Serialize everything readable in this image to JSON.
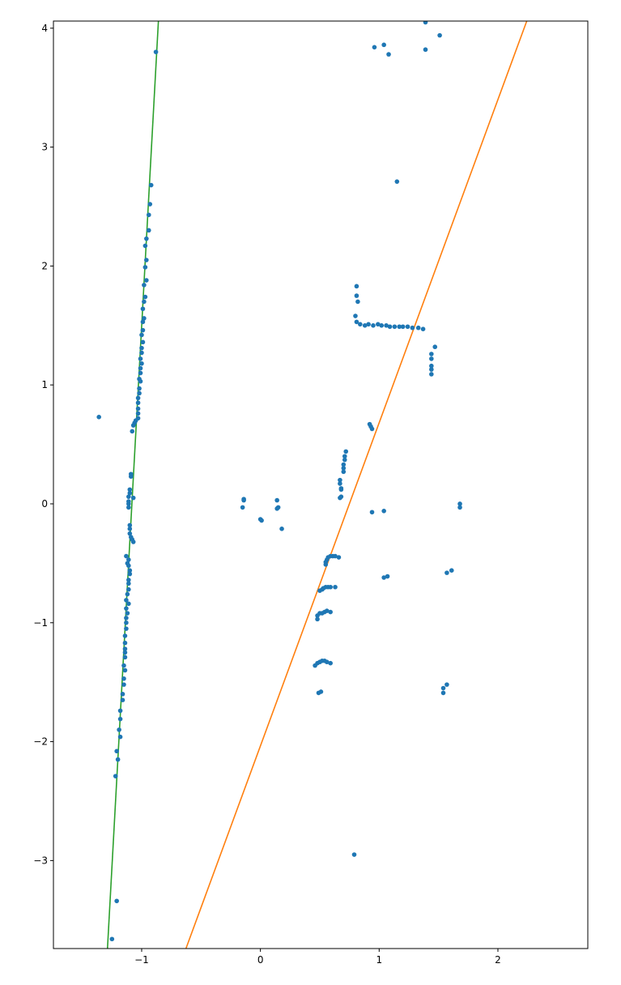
{
  "chart_data": {
    "type": "scatter",
    "xlim": [
      -1.743,
      2.757
    ],
    "ylim": [
      -3.74,
      4.06
    ],
    "xticks": [
      {
        "value": -1,
        "label": "−1"
      },
      0,
      1,
      2
    ],
    "yticks": [
      {
        "value": -3,
        "label": "−3"
      },
      {
        "value": -2,
        "label": "−2"
      },
      {
        "value": -1,
        "label": "−1"
      },
      0,
      1,
      2,
      3,
      4
    ],
    "grid": false,
    "series": [
      {
        "type": "line",
        "color": "#2ca02c",
        "x": [
          -1.288,
          -0.859
        ],
        "y": [
          -3.74,
          4.06
        ]
      },
      {
        "type": "line",
        "color": "#ff7f0e",
        "x": [
          -0.627,
          2.243
        ],
        "y": [
          -3.74,
          4.06
        ]
      },
      {
        "type": "scatter",
        "color": "#1f77b4",
        "x": [
          -0.88,
          -0.92,
          -0.93,
          -0.94,
          -0.94,
          -0.96,
          -0.97,
          -0.96,
          -0.97,
          -0.96,
          -0.98,
          -0.97,
          -0.98,
          -0.99,
          -0.98,
          -0.99,
          -0.99,
          -1.0,
          -0.99,
          -1.0,
          -1.0,
          -1.01,
          -1.0,
          -1.01,
          -1.01,
          -1.02,
          -1.01,
          -1.02,
          -1.02,
          -1.03,
          -1.03,
          -1.03,
          -1.03,
          -1.03,
          -1.05,
          -1.06,
          -1.07,
          -1.08,
          -1.36,
          -1.09,
          -1.09,
          -1.1,
          -1.1,
          -1.11,
          -1.07,
          -1.11,
          -1.11,
          -1.11,
          -1.1,
          -1.1,
          -1.1,
          -1.09,
          -1.08,
          -1.07,
          -1.13,
          -1.11,
          -1.12,
          -1.11,
          -1.1,
          -1.1,
          -1.11,
          -1.11,
          -1.11,
          -1.12,
          -1.13,
          -1.11,
          -1.13,
          -1.12,
          -1.13,
          -1.13,
          -1.13,
          -1.14,
          -1.14,
          -1.14,
          -1.14,
          -1.14,
          -1.15,
          -1.14,
          -1.15,
          -1.15,
          -1.16,
          -1.16,
          -1.18,
          -1.18,
          -1.19,
          -1.18,
          -1.21,
          -1.2,
          -1.22,
          -1.21,
          -1.25,
          0.96,
          1.04,
          1.08,
          1.39,
          1.39,
          1.51,
          1.15,
          0.81,
          0.81,
          0.82,
          0.8,
          0.81,
          0.84,
          0.88,
          0.91,
          0.95,
          0.99,
          1.02,
          1.06,
          1.09,
          1.13,
          1.17,
          1.2,
          1.24,
          1.28,
          1.33,
          1.37,
          1.47,
          1.44,
          1.44,
          1.44,
          1.44,
          1.44,
          0.92,
          0.93,
          0.94,
          0.72,
          0.71,
          0.71,
          0.7,
          0.7,
          0.7,
          0.67,
          0.67,
          0.68,
          0.68,
          0.68,
          0.67,
          -0.14,
          -0.14,
          -0.15,
          0.14,
          0.15,
          0.14,
          0.0,
          0.01,
          0.18,
          0.94,
          1.04,
          1.68,
          1.68,
          0.55,
          0.55,
          0.56,
          0.57,
          0.59,
          0.61,
          0.63,
          0.66,
          1.04,
          1.07,
          1.57,
          1.61,
          0.5,
          0.52,
          0.53,
          0.55,
          0.57,
          0.59,
          0.63,
          0.48,
          0.48,
          0.5,
          0.52,
          0.54,
          0.56,
          0.59,
          0.46,
          0.48,
          0.5,
          0.52,
          0.54,
          0.56,
          0.59,
          0.49,
          0.51,
          1.54,
          1.57,
          1.54,
          0.79
        ],
        "y": [
          3.8,
          2.68,
          2.52,
          2.43,
          2.3,
          2.23,
          2.17,
          2.05,
          1.99,
          1.88,
          1.84,
          1.74,
          1.7,
          1.64,
          1.56,
          1.53,
          1.46,
          1.42,
          1.36,
          1.31,
          1.27,
          1.22,
          1.18,
          1.14,
          1.1,
          1.05,
          1.03,
          0.97,
          0.93,
          0.89,
          0.85,
          0.8,
          0.76,
          0.72,
          0.7,
          0.68,
          0.66,
          0.61,
          0.73,
          0.25,
          0.23,
          0.12,
          0.09,
          0.06,
          0.05,
          0.02,
          0.0,
          -0.03,
          -0.18,
          -0.21,
          -0.25,
          -0.28,
          -0.3,
          -0.32,
          -0.44,
          -0.47,
          -0.5,
          -0.52,
          -0.56,
          -0.59,
          -0.64,
          -0.67,
          -0.72,
          -0.76,
          -0.81,
          -0.84,
          -0.88,
          -0.92,
          -0.96,
          -1.0,
          -1.05,
          -1.11,
          -1.17,
          -1.22,
          -1.25,
          -1.29,
          -1.36,
          -1.4,
          -1.47,
          -1.52,
          -1.6,
          -1.65,
          -1.74,
          -1.81,
          -1.9,
          -1.96,
          -2.08,
          -2.15,
          -2.29,
          -3.34,
          -3.66,
          3.84,
          3.86,
          3.78,
          4.05,
          3.82,
          3.94,
          2.71,
          1.83,
          1.75,
          1.7,
          1.58,
          1.53,
          1.51,
          1.5,
          1.51,
          1.5,
          1.51,
          1.5,
          1.5,
          1.49,
          1.49,
          1.49,
          1.49,
          1.49,
          1.48,
          1.48,
          1.47,
          1.32,
          1.26,
          1.22,
          1.16,
          1.13,
          1.09,
          0.67,
          0.65,
          0.63,
          0.44,
          0.4,
          0.37,
          0.33,
          0.3,
          0.27,
          0.2,
          0.17,
          0.13,
          0.12,
          0.06,
          0.05,
          0.04,
          0.03,
          -0.03,
          0.03,
          -0.03,
          -0.04,
          -0.13,
          -0.14,
          -0.21,
          -0.07,
          -0.06,
          0.0,
          -0.03,
          -0.49,
          -0.51,
          -0.47,
          -0.45,
          -0.44,
          -0.44,
          -0.44,
          -0.45,
          -0.62,
          -0.61,
          -0.58,
          -0.56,
          -0.73,
          -0.72,
          -0.71,
          -0.7,
          -0.7,
          -0.7,
          -0.7,
          -0.97,
          -0.94,
          -0.92,
          -0.92,
          -0.91,
          -0.9,
          -0.91,
          -1.36,
          -1.34,
          -1.33,
          -1.32,
          -1.32,
          -1.33,
          -1.34,
          -1.59,
          -1.58,
          -1.55,
          -1.52,
          -1.59,
          -2.95
        ]
      }
    ]
  }
}
